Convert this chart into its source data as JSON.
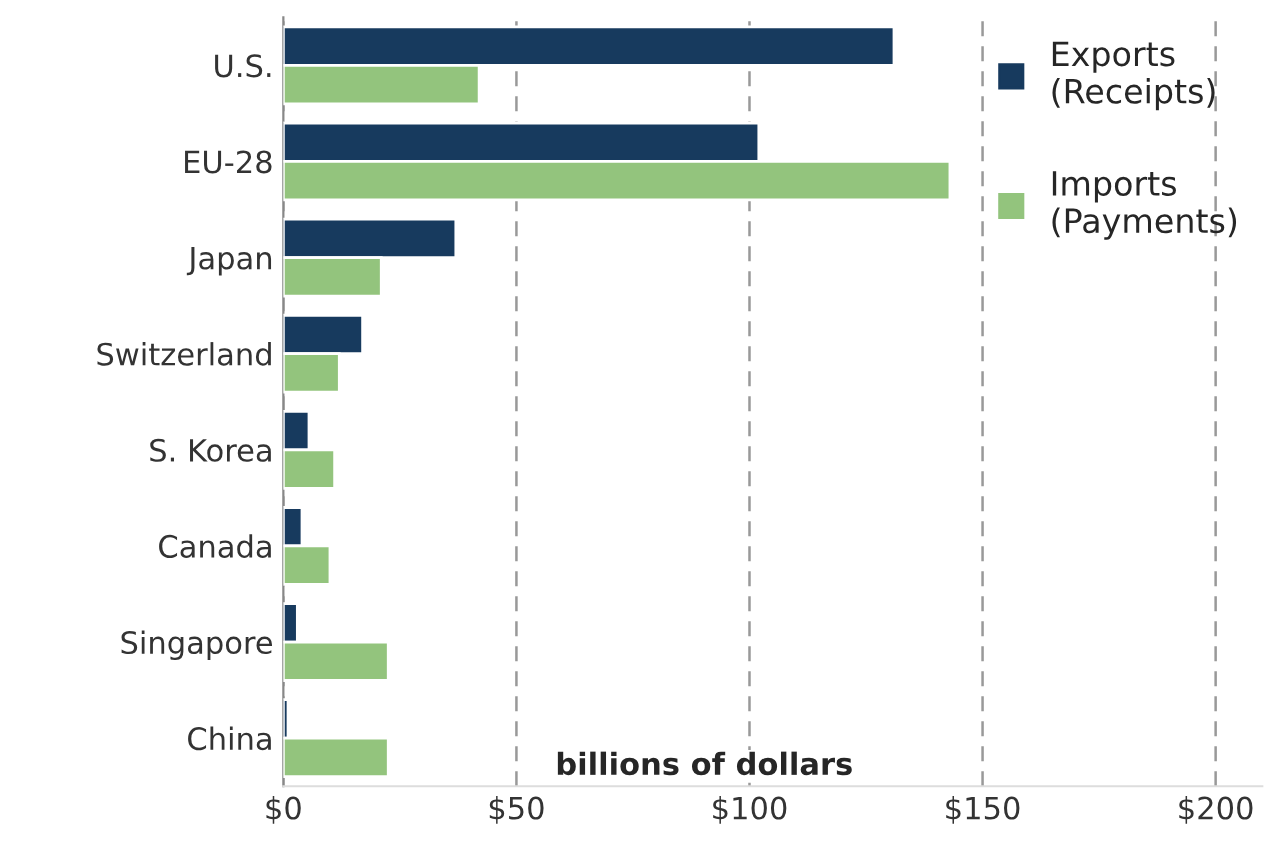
{
  "chart_data": {
    "type": "bar",
    "orientation": "horizontal",
    "categories": [
      "U.S.",
      "EU-28",
      "Japan",
      "Switzerland",
      "S. Korea",
      "Canada",
      "Singapore",
      "China"
    ],
    "series": [
      {
        "name": "Exports\n(Receipts)",
        "color": "#173a5e",
        "values": [
          131,
          102,
          37,
          17,
          5.5,
          4,
          3,
          1
        ]
      },
      {
        "name": "Imports\n(Payments)",
        "color": "#93c47d",
        "values": [
          42,
          143,
          21,
          12,
          11,
          10,
          22.5,
          22.5
        ]
      }
    ],
    "xlabel": "billions of dollars",
    "xlim": [
      0,
      210
    ],
    "xticks": [
      {
        "value": 0,
        "label": "$0"
      },
      {
        "value": 50,
        "label": "$50"
      },
      {
        "value": 100,
        "label": "$100"
      },
      {
        "value": 150,
        "label": "$150"
      },
      {
        "value": 200,
        "label": "$200"
      }
    ],
    "grid": "x",
    "legend": "top right"
  }
}
